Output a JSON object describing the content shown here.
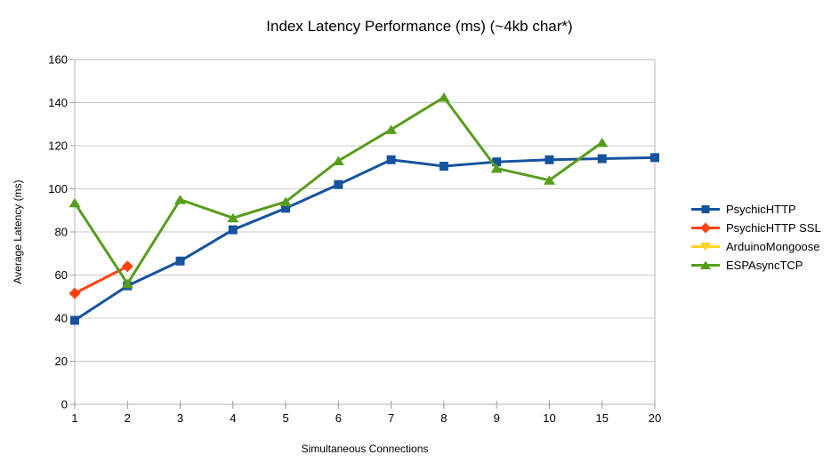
{
  "title": "Index Latency Performance (ms) (~4kb char*)",
  "chart_data": {
    "type": "line",
    "title": "Index Latency Performance (ms) (~4kb char*)",
    "xlabel": "Simultaneous Connections",
    "ylabel": "Average Latency (ms)",
    "categories": [
      "1",
      "2",
      "3",
      "4",
      "5",
      "6",
      "7",
      "8",
      "9",
      "10",
      "15",
      "20"
    ],
    "ylim": [
      0,
      160
    ],
    "ytick_step": 20,
    "yticks": [
      0,
      20,
      40,
      60,
      80,
      100,
      120,
      140,
      160
    ],
    "grid": "horizontal",
    "legend_position": "right",
    "series": [
      {
        "name": "PsychicHTTP",
        "color": "#15539f",
        "marker": "square",
        "values": [
          39,
          55,
          66.5,
          81,
          91,
          102,
          113.5,
          110.5,
          112.5,
          113.5,
          114,
          114.5
        ]
      },
      {
        "name": "PsychicHTTP SSL",
        "color": "#ff420e",
        "marker": "diamond",
        "values": [
          51.5,
          64,
          null,
          null,
          null,
          null,
          null,
          null,
          null,
          null,
          null,
          null
        ]
      },
      {
        "name": "ArduinoMongoose",
        "color": "#ffd320",
        "marker": "triangle-down",
        "values": [
          null,
          null,
          null,
          null,
          null,
          null,
          null,
          null,
          null,
          null,
          null,
          null
        ]
      },
      {
        "name": "ESPAsyncTCP",
        "color": "#579d1c",
        "marker": "triangle-up",
        "values": [
          93.5,
          56,
          95,
          86.5,
          94,
          113,
          127.5,
          142.5,
          109.5,
          104,
          121.5,
          null
        ]
      }
    ]
  },
  "colors": {
    "grid": "#c9c9c9",
    "axis_border": "#b3b3b3",
    "tick": "#989898",
    "text": "#000000",
    "background": "#ffffff"
  }
}
